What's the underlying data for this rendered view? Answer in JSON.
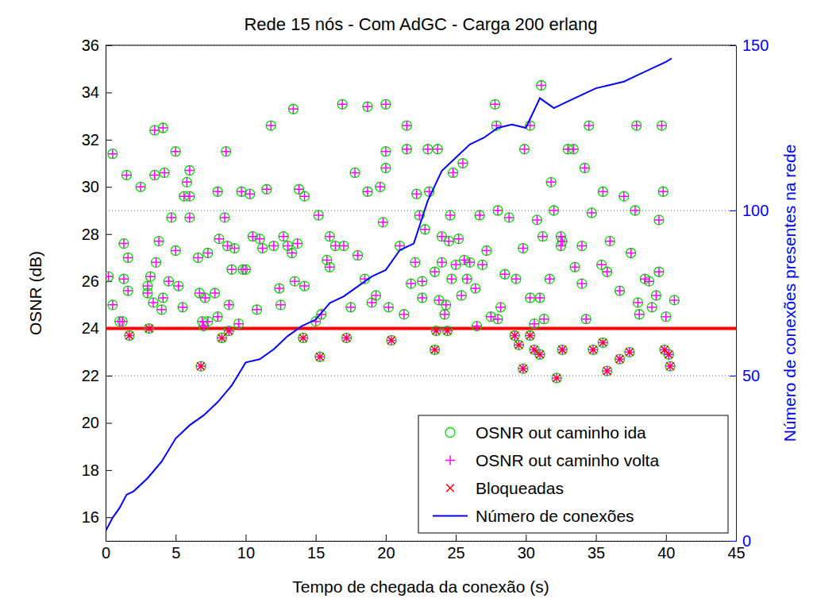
{
  "chart_data": {
    "type": "scatter",
    "title": "Rede 15 nós - Com AdGC - Carga 200 erlang",
    "x_label": "Tempo de chegada da conexão (s)",
    "y_label": "OSNR (dB)",
    "y2_label": "Número de conexões presentes na rede",
    "xlim": [
      0,
      45
    ],
    "xticks": [
      0,
      5,
      10,
      15,
      20,
      25,
      30,
      35,
      40,
      45
    ],
    "ylim": [
      15,
      36
    ],
    "yticks": [
      16,
      18,
      20,
      22,
      24,
      26,
      28,
      30,
      32,
      34,
      36
    ],
    "y2lim": [
      0,
      150
    ],
    "y2ticks": [
      0,
      50,
      100,
      150
    ],
    "grid": "y2",
    "legend": "lower right",
    "reference_lines": [
      {
        "y": 24,
        "color": "#ff0000"
      }
    ],
    "series": [
      {
        "name": "OSNR out caminho ida",
        "type": "scatter",
        "marker": "circle",
        "color": "#00e000",
        "x": [
          0.2,
          0.5,
          0.5,
          1,
          1.2,
          1.3,
          1.3,
          1.5,
          1.6,
          1.6,
          2.5,
          3,
          3,
          3.2,
          3.4,
          3.5,
          3.5,
          3.6,
          3.8,
          4,
          4.1,
          4.1,
          4.2,
          4.5,
          4.7,
          5,
          5,
          5.2,
          5.5,
          5.6,
          5.8,
          6,
          6,
          6,
          6.6,
          6.7,
          6.9,
          7,
          7.1,
          7.3,
          7.3,
          7.8,
          8,
          8,
          8.1,
          8.5,
          8.6,
          8.7,
          8.8,
          9,
          9.2,
          9.5,
          9.7,
          9.8,
          10,
          10.3,
          10.5,
          10.8,
          11,
          11.2,
          11.5,
          11.8,
          12,
          12.4,
          12.5,
          12.7,
          13,
          13.3,
          13.4,
          13.5,
          13.7,
          13.8,
          14.2,
          14.2,
          15,
          15.2,
          15.4,
          15.8,
          16,
          16,
          16.4,
          16.9,
          17,
          17.5,
          17.8,
          18,
          18.5,
          18.7,
          18.7,
          19,
          19.3,
          19.6,
          19.8,
          20,
          20,
          20,
          20.2,
          21,
          21.3,
          21.5,
          21.5,
          21.8,
          22.1,
          22.2,
          22.4,
          22.6,
          22.6,
          22.8,
          23,
          23.1,
          23.5,
          23.7,
          23.8,
          24,
          24,
          24.2,
          24.3,
          24.5,
          24.6,
          24.7,
          24.8,
          25,
          25.2,
          25.4,
          25.5,
          25.6,
          25.8,
          26,
          26.4,
          26.5,
          26.7,
          26.9,
          27.2,
          27.5,
          27.8,
          27.9,
          28,
          28,
          28.2,
          28.5,
          28.8,
          29.3,
          29.8,
          29.9,
          30.3,
          30.3,
          30.6,
          30.8,
          31,
          31.1,
          31.2,
          31.3,
          31.7,
          31.8,
          32,
          32.5,
          32.5,
          32.6,
          33,
          33.4,
          33.5,
          34,
          34,
          34.2,
          34.3,
          34.5,
          34.7,
          35.4,
          35.5,
          35.8,
          36,
          36.7,
          37,
          37.5,
          37.8,
          37.9,
          38,
          38.1,
          38.5,
          38.8,
          39,
          39.3,
          39.5,
          39.5,
          39.7,
          39.8,
          40,
          40.6,
          1.7,
          3.1,
          6.8,
          8.3,
          8.8,
          14.1,
          15.3,
          17.2,
          20.4,
          23.5,
          23.6,
          24.4,
          29.2,
          29.5,
          29.8,
          30.3,
          30.6,
          31,
          32.2,
          32.6,
          34.8,
          35.5,
          35.8,
          36.7,
          37.4,
          39.9,
          40.2,
          40.3
        ],
        "values": [
          26.2,
          31.4,
          25,
          24.3,
          24.3,
          27.6,
          26.1,
          30.5,
          25.6,
          27,
          30,
          25.5,
          25.8,
          26.2,
          25.1,
          32.4,
          30.5,
          26.8,
          27.7,
          24.8,
          32.5,
          25.3,
          30.6,
          26,
          28.7,
          31.5,
          27.3,
          25.8,
          24.9,
          29.6,
          30.2,
          29.6,
          30.7,
          28.7,
          27,
          25.5,
          24.3,
          24.1,
          25.3,
          27.2,
          24.3,
          25.5,
          29.8,
          24.5,
          27.8,
          28.7,
          31.5,
          27.5,
          25,
          26.5,
          27.4,
          24.2,
          29.8,
          26.5,
          26.5,
          29.7,
          27.9,
          24.8,
          27.8,
          27.4,
          29.9,
          32.6,
          27.5,
          25.7,
          25,
          27.9,
          27.5,
          27.2,
          33.3,
          26,
          27.6,
          29.9,
          25.8,
          29.6,
          24.3,
          28.8,
          24.6,
          26.9,
          27.9,
          26.6,
          27.5,
          33.5,
          27.5,
          24.9,
          30.6,
          27.1,
          26.1,
          33.4,
          29.8,
          25.1,
          25.4,
          30,
          28.5,
          31.5,
          33.5,
          30.8,
          24.9,
          27.5,
          24.6,
          31.6,
          32.6,
          25.9,
          26.8,
          29.7,
          28.8,
          26,
          25.3,
          28.2,
          31.6,
          29.8,
          26.4,
          31.6,
          25.2,
          26.8,
          27.9,
          24.6,
          25,
          27.7,
          28.8,
          26.1,
          30.6,
          26.7,
          27.8,
          25.4,
          31,
          26.9,
          26.1,
          26.8,
          25.7,
          24.1,
          28.8,
          26.7,
          27.3,
          24.5,
          33.5,
          32.6,
          29,
          24.4,
          24.9,
          26.3,
          28.7,
          26.1,
          27.4,
          31.6,
          25.3,
          32.6,
          24.2,
          28.6,
          25.3,
          34.3,
          27.9,
          24.4,
          26.1,
          30.2,
          29,
          27.9,
          27.5,
          27.7,
          31.6,
          31.6,
          26.6,
          25.9,
          27.5,
          30.8,
          24.4,
          32.6,
          28.9,
          26.7,
          29.8,
          26.4,
          27.7,
          25.6,
          29.6,
          27.2,
          29,
          32.6,
          25.1,
          24.6,
          26.1,
          26,
          24.9,
          25.4,
          28.6,
          26.4,
          32.6,
          29.8,
          24.5,
          25.2,
          23.7,
          24,
          22.4,
          23.6,
          23.9,
          23.6,
          22.8,
          23.6,
          23.5,
          23.1,
          23.9,
          23.9,
          23.7,
          23.3,
          22.3,
          23.7,
          23.1,
          22.9,
          21.9,
          23.1,
          23.1,
          23.4,
          22.2,
          22.7,
          23,
          23.1,
          22.9,
          22.4
        ]
      },
      {
        "name": "OSNR out caminho volta",
        "type": "scatter",
        "marker": "plus",
        "color": "#ff00ff",
        "x": [
          0.2,
          0.5,
          0.5,
          1,
          1.2,
          1.3,
          1.3,
          1.5,
          1.6,
          1.6,
          2.5,
          3,
          3,
          3.2,
          3.4,
          3.5,
          3.5,
          3.6,
          3.8,
          4,
          4.1,
          4.1,
          4.2,
          4.5,
          4.7,
          5,
          5,
          5.2,
          5.5,
          5.6,
          5.8,
          6,
          6,
          6,
          6.6,
          6.7,
          6.9,
          7,
          7.1,
          7.3,
          7.3,
          7.8,
          8,
          8,
          8.1,
          8.5,
          8.6,
          8.7,
          8.8,
          9,
          9.2,
          9.5,
          9.7,
          9.8,
          10,
          10.3,
          10.5,
          10.8,
          11,
          11.2,
          11.5,
          11.8,
          12,
          12.4,
          12.5,
          12.7,
          13,
          13.3,
          13.4,
          13.5,
          13.7,
          13.8,
          14.2,
          14.2,
          15,
          15.2,
          15.4,
          15.8,
          16,
          16,
          16.4,
          16.9,
          17,
          17.5,
          17.8,
          18,
          18.5,
          18.7,
          18.7,
          19,
          19.3,
          19.6,
          19.8,
          20,
          20,
          20,
          20.2,
          21,
          21.3,
          21.5,
          21.5,
          21.8,
          22.1,
          22.2,
          22.4,
          22.6,
          22.6,
          22.8,
          23,
          23.1,
          23.5,
          23.7,
          23.8,
          24,
          24,
          24.2,
          24.3,
          24.5,
          24.6,
          24.7,
          24.8,
          25,
          25.2,
          25.4,
          25.5,
          25.6,
          25.8,
          26,
          26.4,
          26.5,
          26.7,
          26.9,
          27.2,
          27.5,
          27.8,
          27.9,
          28,
          28,
          28.2,
          28.5,
          28.8,
          29.3,
          29.8,
          29.9,
          30.3,
          30.3,
          30.6,
          30.8,
          31,
          31.1,
          31.2,
          31.3,
          31.7,
          31.8,
          32,
          32.5,
          32.5,
          32.6,
          33,
          33.4,
          33.5,
          34,
          34,
          34.2,
          34.3,
          34.5,
          34.7,
          35.4,
          35.5,
          35.8,
          36,
          36.7,
          37,
          37.5,
          37.8,
          37.9,
          38,
          38.1,
          38.5,
          38.8,
          39,
          39.3,
          39.5,
          39.5,
          39.7,
          39.8,
          40,
          40.6,
          1.7,
          3.1,
          6.8,
          8.3,
          8.8,
          14.1,
          15.3,
          17.2,
          20.4,
          23.5,
          23.6,
          24.4,
          29.2,
          29.5,
          29.8,
          30.3,
          30.6,
          31,
          32.2,
          32.6,
          34.8,
          35.5,
          35.8,
          36.7,
          37.4,
          39.9,
          40.2,
          40.3
        ],
        "values": [
          26.2,
          31.4,
          25,
          24.3,
          24.3,
          27.6,
          26.1,
          30.5,
          25.6,
          27,
          30,
          25.5,
          25.8,
          26.2,
          25.1,
          32.4,
          30.5,
          26.8,
          27.7,
          24.8,
          32.5,
          25.3,
          30.6,
          26,
          28.7,
          31.5,
          27.3,
          25.8,
          24.9,
          29.6,
          30.2,
          29.6,
          30.7,
          28.7,
          27,
          25.5,
          24.3,
          24.1,
          25.3,
          27.2,
          24.3,
          25.5,
          29.8,
          24.5,
          27.8,
          28.7,
          31.5,
          27.5,
          25,
          26.5,
          27.4,
          24.2,
          29.8,
          26.5,
          26.5,
          29.7,
          27.9,
          24.8,
          27.8,
          27.4,
          29.9,
          32.6,
          27.5,
          25.7,
          25,
          27.9,
          27.5,
          27.2,
          33.3,
          26,
          27.6,
          29.9,
          25.8,
          29.6,
          24.3,
          28.8,
          24.6,
          26.9,
          27.9,
          26.6,
          27.5,
          33.5,
          27.5,
          24.9,
          30.6,
          27.1,
          26.1,
          33.4,
          29.8,
          25.1,
          25.4,
          30,
          28.5,
          31.5,
          33.5,
          30.8,
          24.9,
          27.5,
          24.6,
          31.6,
          32.6,
          25.9,
          26.8,
          29.7,
          28.8,
          26,
          25.3,
          28.2,
          31.6,
          29.8,
          26.4,
          31.6,
          25.2,
          26.8,
          27.9,
          24.6,
          25,
          27.7,
          28.8,
          26.1,
          30.6,
          26.7,
          27.8,
          25.4,
          31,
          26.9,
          26.1,
          26.8,
          25.7,
          24.1,
          28.8,
          26.7,
          27.3,
          24.5,
          33.5,
          32.6,
          29,
          24.4,
          24.9,
          26.3,
          28.7,
          26.1,
          27.4,
          31.6,
          25.3,
          32.6,
          24.2,
          28.6,
          25.3,
          34.3,
          27.9,
          24.4,
          26.1,
          30.2,
          29,
          27.9,
          27.5,
          27.7,
          31.6,
          31.6,
          26.6,
          25.9,
          27.5,
          30.8,
          24.4,
          32.6,
          28.9,
          26.7,
          29.8,
          26.4,
          27.7,
          25.6,
          29.6,
          27.2,
          29,
          32.6,
          25.1,
          24.6,
          26.1,
          26,
          24.9,
          25.4,
          28.6,
          26.4,
          32.6,
          29.8,
          24.5,
          25.2,
          23.7,
          24,
          22.4,
          23.6,
          23.9,
          23.6,
          22.8,
          23.6,
          23.5,
          23.1,
          23.9,
          23.9,
          23.7,
          23.3,
          22.3,
          23.7,
          23.1,
          22.9,
          21.9,
          23.1,
          23.1,
          23.4,
          22.2,
          22.7,
          23,
          23.1,
          22.9,
          22.4
        ]
      },
      {
        "name": "Bloqueadas",
        "type": "scatter",
        "marker": "x",
        "color": "#ff0000",
        "x": [
          1.7,
          3.1,
          6.8,
          8.3,
          8.8,
          14.1,
          15.3,
          17.2,
          20.4,
          23.5,
          23.6,
          24.4,
          29.2,
          29.5,
          29.8,
          30.3,
          30.6,
          31,
          32.2,
          32.6,
          34.8,
          35.5,
          35.8,
          36.7,
          37.4,
          39.9,
          40.2,
          40.3
        ],
        "values": [
          23.7,
          24,
          22.4,
          23.6,
          23.9,
          23.6,
          22.8,
          23.6,
          23.5,
          23.1,
          23.9,
          23.9,
          23.7,
          23.3,
          22.3,
          23.7,
          23.1,
          22.9,
          21.9,
          23.1,
          23.1,
          23.4,
          22.2,
          22.7,
          23,
          23.1,
          22.9,
          22.4
        ]
      },
      {
        "name": "Número de conexões",
        "type": "line",
        "line_style": "solid",
        "color": "#0000ff",
        "axis": "y2",
        "x": [
          0,
          0.5,
          1,
          1.5,
          2,
          3,
          4,
          5,
          6,
          7,
          8,
          9,
          10,
          11,
          12,
          13,
          14,
          15,
          16,
          17,
          18,
          19,
          20,
          21,
          22,
          23,
          24,
          25,
          26,
          27,
          28,
          29,
          30,
          31,
          32,
          33,
          34,
          35,
          36,
          37,
          38,
          39,
          40,
          40.4
        ],
        "values": [
          3,
          7,
          10,
          14,
          15,
          19,
          24,
          31,
          35,
          38,
          42,
          47,
          54,
          55,
          58,
          62,
          65,
          67,
          72,
          74,
          77,
          80,
          82,
          88,
          90,
          103,
          112,
          116,
          120,
          122,
          125,
          126,
          125,
          134,
          131,
          133,
          135,
          137,
          138,
          139,
          141,
          143,
          145,
          146
        ]
      }
    ]
  }
}
